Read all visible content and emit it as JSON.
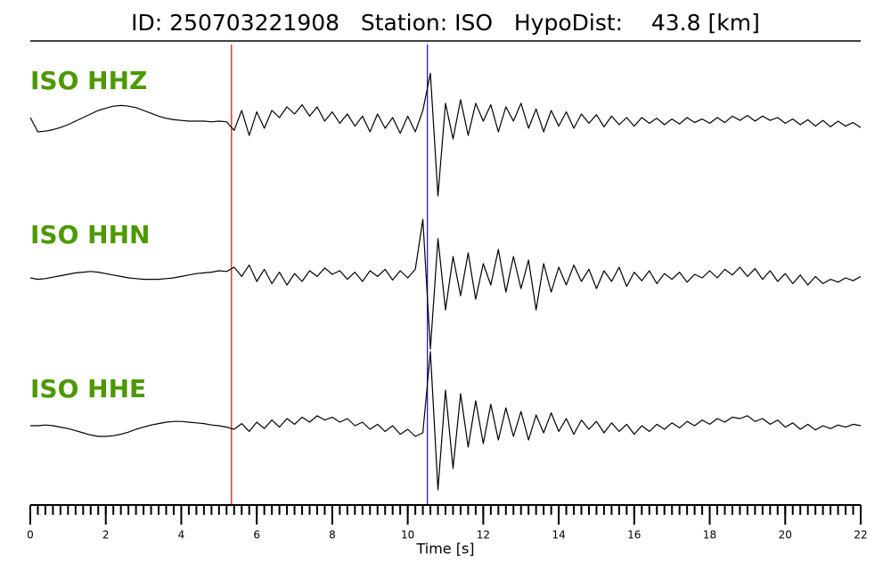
{
  "chart_data": {
    "type": "seismogram",
    "title": "ID: 250703221908   Station: ISO   HypoDist:    43.8 [km]",
    "xlabel": "Time [s]",
    "xlim": [
      0,
      22
    ],
    "xticks": [
      0,
      2,
      4,
      6,
      8,
      10,
      12,
      14,
      16,
      18,
      20,
      22
    ],
    "xminorticks": [
      0,
      0.2,
      0.4,
      0.6,
      0.8,
      1,
      1.2,
      1.4,
      1.6,
      1.8,
      2,
      2.2,
      2.4,
      2.6,
      2.8,
      3,
      3.2,
      3.4,
      3.6,
      3.8,
      4,
      4.2,
      4.4,
      4.6,
      4.8,
      5,
      5.2,
      5.4,
      5.6,
      5.8,
      6,
      6.2,
      6.4,
      6.6,
      6.8,
      7,
      7.2,
      7.4,
      7.6,
      7.8,
      8,
      8.2,
      8.4,
      8.6,
      8.8,
      9,
      9.2,
      9.4,
      9.6,
      9.8,
      10,
      10.2,
      10.4,
      10.6,
      10.8,
      11,
      11.2,
      11.4,
      11.6,
      11.8,
      12,
      12.2,
      12.4,
      12.6,
      12.8,
      13,
      13.2,
      13.4,
      13.6,
      13.8,
      14,
      14.2,
      14.4,
      14.6,
      14.8,
      15,
      15.2,
      15.4,
      15.6,
      15.8,
      16,
      16.2,
      16.4,
      16.6,
      16.8,
      17,
      17.2,
      17.4,
      17.6,
      17.8,
      18,
      18.2,
      18.4,
      18.6,
      18.8,
      19,
      19.2,
      19.4,
      19.6,
      19.8,
      20,
      20.2,
      20.4,
      20.6,
      20.8,
      21,
      21.2,
      21.4,
      21.6,
      21.8,
      22
    ],
    "x": [
      0,
      0.2,
      0.4,
      0.6,
      0.8,
      1,
      1.2,
      1.4,
      1.6,
      1.8,
      2,
      2.2,
      2.4,
      2.6,
      2.8,
      3,
      3.2,
      3.4,
      3.6,
      3.8,
      4,
      4.2,
      4.4,
      4.6,
      4.8,
      5,
      5.2,
      5.4,
      5.6,
      5.8,
      6,
      6.2,
      6.4,
      6.6,
      6.8,
      7,
      7.2,
      7.4,
      7.6,
      7.8,
      8,
      8.2,
      8.4,
      8.6,
      8.8,
      9,
      9.2,
      9.4,
      9.6,
      9.8,
      10,
      10.2,
      10.4,
      10.6,
      10.8,
      11,
      11.2,
      11.4,
      11.6,
      11.8,
      12,
      12.2,
      12.4,
      12.6,
      12.8,
      13,
      13.2,
      13.4,
      13.6,
      13.8,
      14,
      14.2,
      14.4,
      14.6,
      14.8,
      15,
      15.2,
      15.4,
      15.6,
      15.8,
      16,
      16.2,
      16.4,
      16.6,
      16.8,
      17,
      17.2,
      17.4,
      17.6,
      17.8,
      18,
      18.2,
      18.4,
      18.6,
      18.8,
      19,
      19.2,
      19.4,
      19.6,
      19.8,
      20,
      20.2,
      20.4,
      20.6,
      20.8,
      21,
      21.2,
      21.4,
      21.6,
      21.8,
      22
    ],
    "label_color": "#4c9900",
    "picks": [
      {
        "value": 5.33,
        "color": "#e41a1c"
      },
      {
        "value": 10.52,
        "color": "#1f1fbf"
      }
    ],
    "series": [
      {
        "name": "ISO HHZ",
        "color": "#000000",
        "values": [
          0.1,
          -0.1,
          -0.09,
          -0.07,
          -0.04,
          0,
          0.05,
          0.1,
          0.15,
          0.2,
          0.23,
          0.26,
          0.27,
          0.26,
          0.24,
          0.2,
          0.16,
          0.12,
          0.09,
          0.07,
          0.06,
          0.05,
          0.05,
          0.05,
          0.04,
          0.05,
          0.04,
          -0.08,
          0.2,
          -0.15,
          0.18,
          -0.05,
          0.2,
          0.1,
          0.25,
          0.15,
          0.28,
          0.12,
          0.25,
          0.05,
          0.18,
          0.02,
          0.15,
          -0.02,
          0.12,
          -0.1,
          0.15,
          -0.05,
          0.1,
          -0.12,
          0.12,
          -0.1,
          0.2,
          0.72,
          -1.0,
          0.3,
          -0.2,
          0.35,
          -0.15,
          0.3,
          0.05,
          0.28,
          -0.1,
          0.25,
          0.05,
          0.3,
          -0.05,
          0.22,
          -0.1,
          0.2,
          -0.02,
          0.18,
          -0.05,
          0.15,
          0.02,
          0.14,
          -0.03,
          0.12,
          0,
          0.1,
          -0.02,
          0.1,
          0.02,
          0.09,
          0,
          0.08,
          0.01,
          0.1,
          0.03,
          0.08,
          0.02,
          0.1,
          0.03,
          0.12,
          0.06,
          0.13,
          0.05,
          0.12,
          0.06,
          0.1,
          0.02,
          0.08,
          0,
          0.07,
          -0.02,
          0.06,
          -0.03,
          0.05,
          -0.02,
          0.03,
          -0.04
        ]
      },
      {
        "name": "ISO HHN",
        "color": "#000000",
        "values": [
          0,
          -0.02,
          -0.01,
          0.01,
          0.03,
          0.05,
          0.07,
          0.08,
          0.09,
          0.08,
          0.06,
          0.04,
          0.02,
          0,
          -0.01,
          -0.02,
          -0.02,
          -0.02,
          -0.01,
          0,
          0.02,
          0.04,
          0.06,
          0.07,
          0.08,
          0.1,
          0.09,
          0.15,
          0.02,
          0.18,
          -0.05,
          0.12,
          -0.08,
          0.08,
          -0.1,
          0.06,
          -0.05,
          0.1,
          0.02,
          0.14,
          0.05,
          0.1,
          -0.02,
          0.08,
          -0.05,
          0.1,
          0.02,
          0.12,
          -0.03,
          0.1,
          0,
          0.12,
          0.82,
          -1.0,
          0.55,
          -0.45,
          0.3,
          -0.25,
          0.35,
          -0.3,
          0.2,
          -0.1,
          0.4,
          -0.2,
          0.3,
          -0.15,
          0.25,
          -0.45,
          0.2,
          -0.2,
          0.15,
          -0.1,
          0.18,
          -0.05,
          0.12,
          -0.15,
          0.1,
          -0.05,
          0.15,
          -0.12,
          0.08,
          -0.04,
          0.1,
          -0.08,
          0.06,
          -0.02,
          0.08,
          -0.06,
          0.05,
          0,
          0.1,
          0,
          0.12,
          0.04,
          0.15,
          0.02,
          0.13,
          -0.02,
          0.1,
          -0.05,
          0.06,
          -0.08,
          0.04,
          -0.1,
          0.02,
          -0.08,
          -0.02,
          -0.06,
          0,
          -0.04,
          0.02
        ]
      },
      {
        "name": "ISO HHE",
        "color": "#000000",
        "values": [
          0,
          0,
          0.01,
          0,
          -0.02,
          -0.04,
          -0.07,
          -0.1,
          -0.13,
          -0.15,
          -0.15,
          -0.14,
          -0.12,
          -0.09,
          -0.05,
          -0.02,
          0.01,
          0.03,
          0.05,
          0.06,
          0.06,
          0.05,
          0.04,
          0.03,
          0.01,
          0,
          -0.02,
          -0.05,
          0.03,
          -0.08,
          0.05,
          -0.04,
          0.08,
          -0.02,
          0.1,
          0.02,
          0.12,
          0.05,
          0.14,
          0.08,
          0.12,
          0.05,
          0.1,
          0,
          0.05,
          -0.05,
          0.02,
          -0.08,
          0,
          -0.12,
          -0.05,
          -0.15,
          -0.1,
          1.04,
          -0.9,
          0.5,
          -0.6,
          0.45,
          -0.3,
          0.35,
          -0.25,
          0.3,
          -0.2,
          0.25,
          -0.15,
          0.2,
          -0.2,
          0.15,
          -0.1,
          0.18,
          -0.08,
          0.1,
          -0.12,
          0.08,
          -0.05,
          0.06,
          -0.1,
          0.04,
          -0.08,
          0.02,
          -0.12,
          0,
          -0.08,
          0.02,
          -0.05,
          0.04,
          -0.03,
          0.06,
          0,
          0.08,
          0.02,
          0.1,
          0.05,
          0.12,
          0.1,
          0.14,
          0.06,
          0.1,
          0.02,
          0.08,
          -0.02,
          0.04,
          -0.05,
          0.02,
          -0.06,
          0,
          -0.04,
          0.01,
          -0.02,
          0.02,
          0
        ]
      }
    ]
  }
}
